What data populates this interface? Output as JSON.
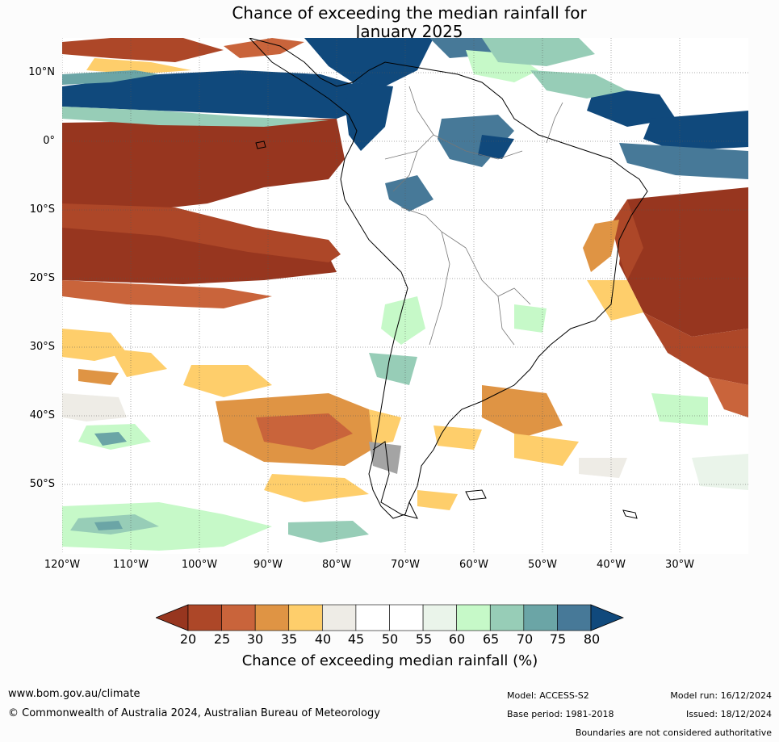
{
  "title": {
    "line1": "Chance of exceeding the median rainfall for",
    "line2": "January 2025"
  },
  "map": {
    "lat_labels": [
      "10°N",
      "0°",
      "10°S",
      "20°S",
      "30°S",
      "40°S",
      "50°S"
    ],
    "lon_labels": [
      "120°W",
      "110°W",
      "100°W",
      "90°W",
      "80°W",
      "70°W",
      "60°W",
      "50°W",
      "40°W",
      "30°W"
    ],
    "colors": {
      "c20": "#97361f",
      "c25": "#ad4728",
      "c30": "#c9643b",
      "c35": "#df9444",
      "c40": "#fece6b",
      "c45": "#eeece6",
      "c55": "#ffffff",
      "c60": "#eaf4ea",
      "c65": "#c6f9c8",
      "c70": "#97cdb7",
      "c75": "#6ba5a6",
      "c80": "#477998",
      "c85": "#10497c"
    }
  },
  "colorbar": {
    "ticks": [
      "20",
      "25",
      "30",
      "35",
      "40",
      "45",
      "50",
      "55",
      "60",
      "65",
      "70",
      "75",
      "80"
    ],
    "label": "Chance of exceeding median rainfall (%)",
    "colors": [
      "#ad4728",
      "#c9643b",
      "#df9444",
      "#fece6b",
      "#eeece6",
      "#ffffff",
      "#ffffff",
      "#eaf4ea",
      "#c6f9c8",
      "#97cdb7",
      "#6ba5a6",
      "#477998"
    ],
    "under_color": "#97361f",
    "over_color": "#10497c"
  },
  "footer": {
    "url": "www.bom.gov.au/climate",
    "copyright": "© Commonwealth of Australia 2024, Australian Bureau of Meteorology",
    "model": "Model: ACCESS-S2",
    "base_period": "Base period: 1981-2018",
    "model_run": "Model run: 16/12/2024",
    "issued": "Issued: 18/12/2024",
    "disclaimer": "Boundaries are not considered authoritative"
  }
}
